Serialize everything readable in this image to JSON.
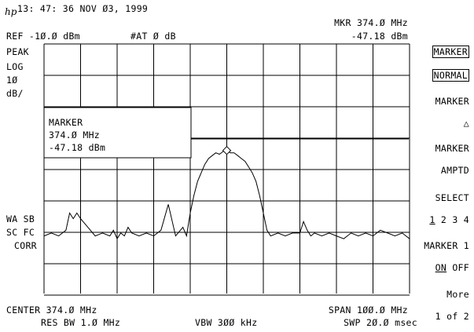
{
  "header": {
    "timestamp": "13: 47: 36 NOV Ø3, 1999",
    "ref_level": "REF -1Ø.Ø dBm",
    "attenuation": "#AT Ø dB",
    "marker_freq": "MKR 374.Ø MHz",
    "marker_amp": "-47.18 dBm"
  },
  "left_labels": {
    "detector": "PEAK",
    "scale": "LOG",
    "scale_value": "1Ø",
    "scale_unit": "dB/",
    "wa_sb": "WA SB",
    "sc_fc": "SC FC",
    "corr": "CORR"
  },
  "marker_readout": {
    "title": "MARKER",
    "freq": "374.Ø MHz",
    "amp": "-47.18 dBm"
  },
  "softkeys": {
    "marker_normal_line1": "MARKER",
    "marker_normal_line2": "NORMAL",
    "marker_delta_line1": "MARKER",
    "marker_delta_line2": "△",
    "marker_amptd_line1": "MARKER",
    "marker_amptd_line2": "AMPTD",
    "select_line1": "SELECT",
    "select_opt1": "1",
    "select_rest": " 2 3 4",
    "marker1_line1": "MARKER 1",
    "marker1_on": "ON",
    "marker1_off": " OFF",
    "more_line1": "More",
    "more_line2": "1 of 2"
  },
  "footer": {
    "center": "CENTER 374.Ø MHz",
    "span": "SPAN 1ØØ.Ø MHz",
    "res_bw": "RES BW 1.Ø MHz",
    "vbw": "VBW 3ØØ kHz",
    "sweep": "SWP 2Ø.Ø msec"
  },
  "chart_data": {
    "type": "line",
    "center_mhz": 374.0,
    "span_mhz": 100.0,
    "ref_dbm": -10.0,
    "db_per_div": 10,
    "divisions_x": 10,
    "divisions_y": 8,
    "marker": {
      "freq_mhz": 374.0,
      "amp_dbm": -47.18
    },
    "series": [
      {
        "x": [
          324,
          326,
          328,
          330,
          331,
          332,
          333,
          334,
          336,
          338,
          340,
          342,
          343,
          344,
          345,
          346,
          347,
          348,
          350,
          352,
          354,
          356,
          358,
          360,
          362,
          363,
          364,
          365,
          366,
          367,
          368,
          369,
          370,
          371,
          372,
          373,
          374,
          375,
          376,
          377,
          378,
          379,
          380,
          381,
          382,
          383,
          384,
          385,
          386,
          388,
          390,
          392,
          394,
          395,
          396,
          397,
          398,
          400,
          402,
          404,
          406,
          408,
          410,
          412,
          414,
          416,
          418,
          420,
          422,
          424
        ],
        "y": [
          -77,
          -76,
          -77,
          -75,
          -69,
          -71,
          -69,
          -71,
          -74,
          -77,
          -76,
          -77,
          -75,
          -78,
          -76,
          -77,
          -74,
          -76,
          -77,
          -76,
          -77,
          -75,
          -66,
          -77,
          -74,
          -77,
          -69,
          -63,
          -58,
          -55,
          -52,
          -50,
          -49,
          -48,
          -48.5,
          -47.5,
          -47.2,
          -48,
          -48,
          -49,
          -50,
          -51,
          -53,
          -55,
          -58,
          -63,
          -69,
          -75,
          -77,
          -76,
          -77,
          -76,
          -76,
          -72,
          -75,
          -77,
          -76,
          -77,
          -76,
          -77,
          -78,
          -76,
          -77,
          -76,
          -77,
          -75,
          -76,
          -77,
          -76,
          -78
        ]
      }
    ]
  }
}
